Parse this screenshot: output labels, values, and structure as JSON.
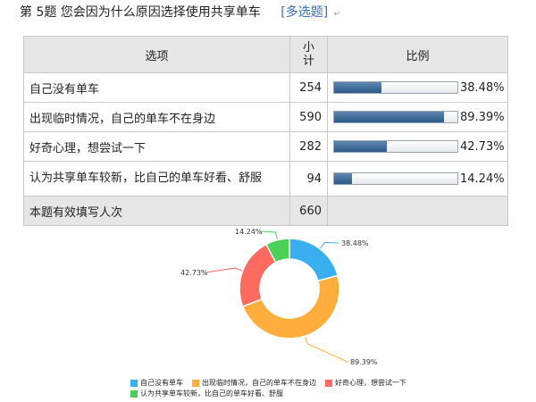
{
  "question": {
    "title": "第 5题   您会因为什么原因选择使用共享单车",
    "type": "[多选题]",
    "mark": "↵"
  },
  "table": {
    "headers": {
      "option": "选项",
      "count": "小计",
      "ratio": "比例"
    },
    "rows": [
      {
        "label": "自己没有单车",
        "count": "254",
        "percent": "38.48%",
        "fraction": 0.3848
      },
      {
        "label": "出现临时情况，自己的单车不在身边",
        "count": "590",
        "percent": "89.39%",
        "fraction": 0.8939
      },
      {
        "label": "好奇心理，想尝试一下",
        "count": "282",
        "percent": "42.73%",
        "fraction": 0.4273
      },
      {
        "label": "认为共享单车较新，比自己的单车好看、舒服",
        "count": "94",
        "percent": "14.24%",
        "fraction": 0.1424
      }
    ],
    "footer": {
      "label": "本题有效填写人次",
      "count": "660"
    }
  },
  "chart_data": {
    "type": "pie",
    "style": "donut",
    "categories": [
      "自己没有单车",
      "出现临时情况，自己的单车不在身边",
      "好奇心理，想尝试一下",
      "认为共享单车较新，比自己的单车好看、舒服"
    ],
    "values": [
      38.48,
      89.39,
      42.73,
      14.24
    ],
    "labels": [
      "38.48%",
      "89.39%",
      "42.73%",
      "14.24%"
    ],
    "colors": [
      "#3aaff0",
      "#ffad3c",
      "#fd6b60",
      "#4bd058"
    ],
    "legend_position": "bottom"
  }
}
